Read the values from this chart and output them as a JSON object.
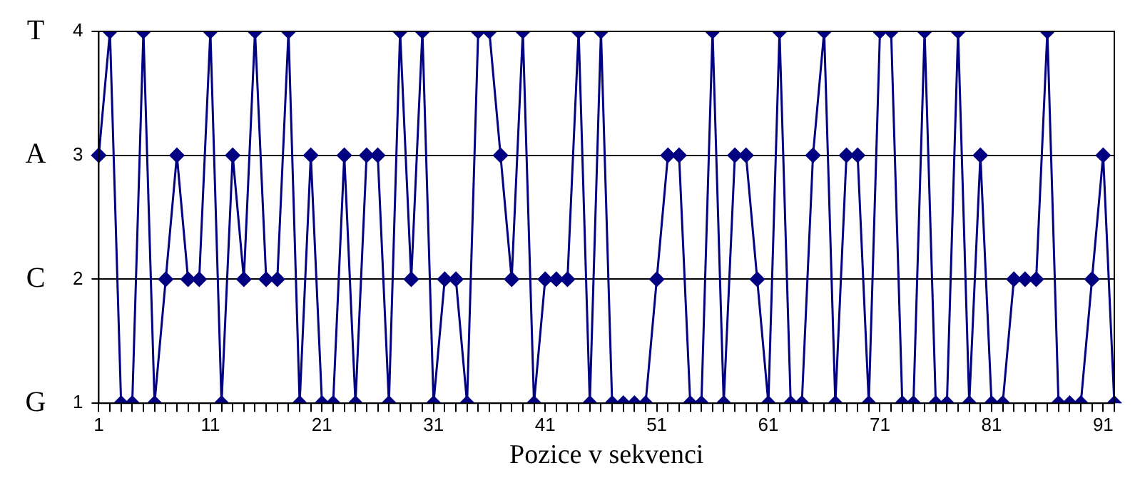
{
  "chart_data": {
    "type": "line",
    "xlabel": "Pozice v sekvenci",
    "categories": [
      "1",
      null,
      null,
      null,
      null,
      null,
      null,
      null,
      null,
      null,
      "11",
      null,
      null,
      null,
      null,
      null,
      null,
      null,
      null,
      null,
      "21",
      null,
      null,
      null,
      null,
      null,
      null,
      null,
      null,
      null,
      "31",
      null,
      null,
      null,
      null,
      null,
      null,
      null,
      null,
      null,
      "41",
      null,
      null,
      null,
      null,
      null,
      null,
      null,
      null,
      null,
      "51",
      null,
      null,
      null,
      null,
      null,
      null,
      null,
      null,
      null,
      "61",
      null,
      null,
      null,
      null,
      null,
      null,
      null,
      null,
      null,
      "71",
      null,
      null,
      null,
      null,
      null,
      null,
      null,
      null,
      null,
      "81",
      null,
      null,
      null,
      null,
      null,
      null,
      null,
      null,
      null,
      "91",
      null
    ],
    "series": [
      {
        "color": "#000080",
        "values": [
          3,
          4,
          1,
          1,
          4,
          1,
          2,
          3,
          2,
          2,
          4,
          1,
          3,
          2,
          4,
          2,
          2,
          4,
          1,
          3,
          1,
          1,
          3,
          1,
          3,
          3,
          1,
          4,
          2,
          4,
          1,
          2,
          2,
          1,
          4,
          4,
          3,
          2,
          4,
          1,
          2,
          2,
          2,
          4,
          1,
          4,
          1,
          1,
          1,
          1,
          2,
          3,
          3,
          1,
          1,
          4,
          1,
          3,
          3,
          2,
          1,
          4,
          1,
          1,
          3,
          4,
          1,
          3,
          3,
          1,
          4,
          4,
          1,
          1,
          4,
          1,
          1,
          4,
          1,
          3,
          1,
          1,
          2,
          2,
          2,
          4,
          1,
          1,
          1,
          2,
          3,
          1
        ]
      }
    ],
    "ylim": [
      1,
      4
    ],
    "yticks": [
      1,
      2,
      3,
      4
    ],
    "annotations": [
      "T",
      "A",
      "C",
      "G"
    ],
    "grid": "y",
    "legend": false,
    "marker": "diamond",
    "line_style": "solid"
  }
}
